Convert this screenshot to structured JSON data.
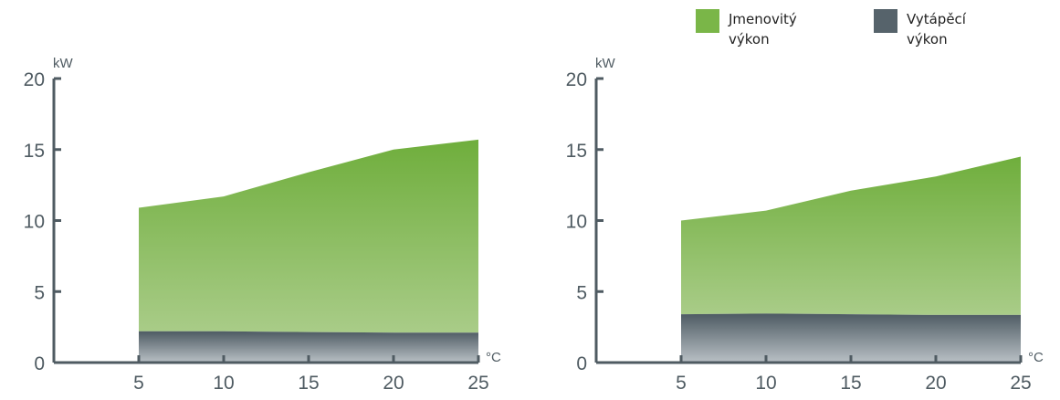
{
  "legend": {
    "items": [
      {
        "label": "Jmenovitý výkon",
        "color": "#7ab648"
      },
      {
        "label": "Vytápěcí výkon",
        "color": "#56636b"
      }
    ]
  },
  "chart_data": [
    {
      "type": "area",
      "title": "",
      "xlabel": "°C",
      "ylabel": "kW",
      "x": [
        5,
        10,
        15,
        20,
        25
      ],
      "xticks": [
        5,
        10,
        15,
        20,
        25
      ],
      "yticks": [
        0,
        5,
        10,
        15,
        20
      ],
      "xlim": [
        0,
        25
      ],
      "ylim": [
        0,
        20
      ],
      "grid": false,
      "series": [
        {
          "name": "Jmenovitý výkon",
          "values": [
            10.9,
            11.7,
            13.4,
            15.0,
            15.7
          ]
        },
        {
          "name": "Vytápěcí výkon",
          "values": [
            2.2,
            2.2,
            2.15,
            2.1,
            2.1
          ]
        }
      ]
    },
    {
      "type": "area",
      "title": "",
      "xlabel": "°C",
      "ylabel": "kW",
      "x": [
        5,
        10,
        15,
        20,
        25
      ],
      "xticks": [
        5,
        10,
        15,
        20,
        25
      ],
      "yticks": [
        0,
        5,
        10,
        15,
        20
      ],
      "xlim": [
        0,
        25
      ],
      "ylim": [
        0,
        20
      ],
      "grid": false,
      "series": [
        {
          "name": "Jmenovitý výkon",
          "values": [
            10.0,
            10.7,
            12.1,
            13.1,
            14.5
          ]
        },
        {
          "name": "Vytápěcí výkon",
          "values": [
            3.4,
            3.45,
            3.4,
            3.35,
            3.35
          ]
        }
      ]
    }
  ]
}
